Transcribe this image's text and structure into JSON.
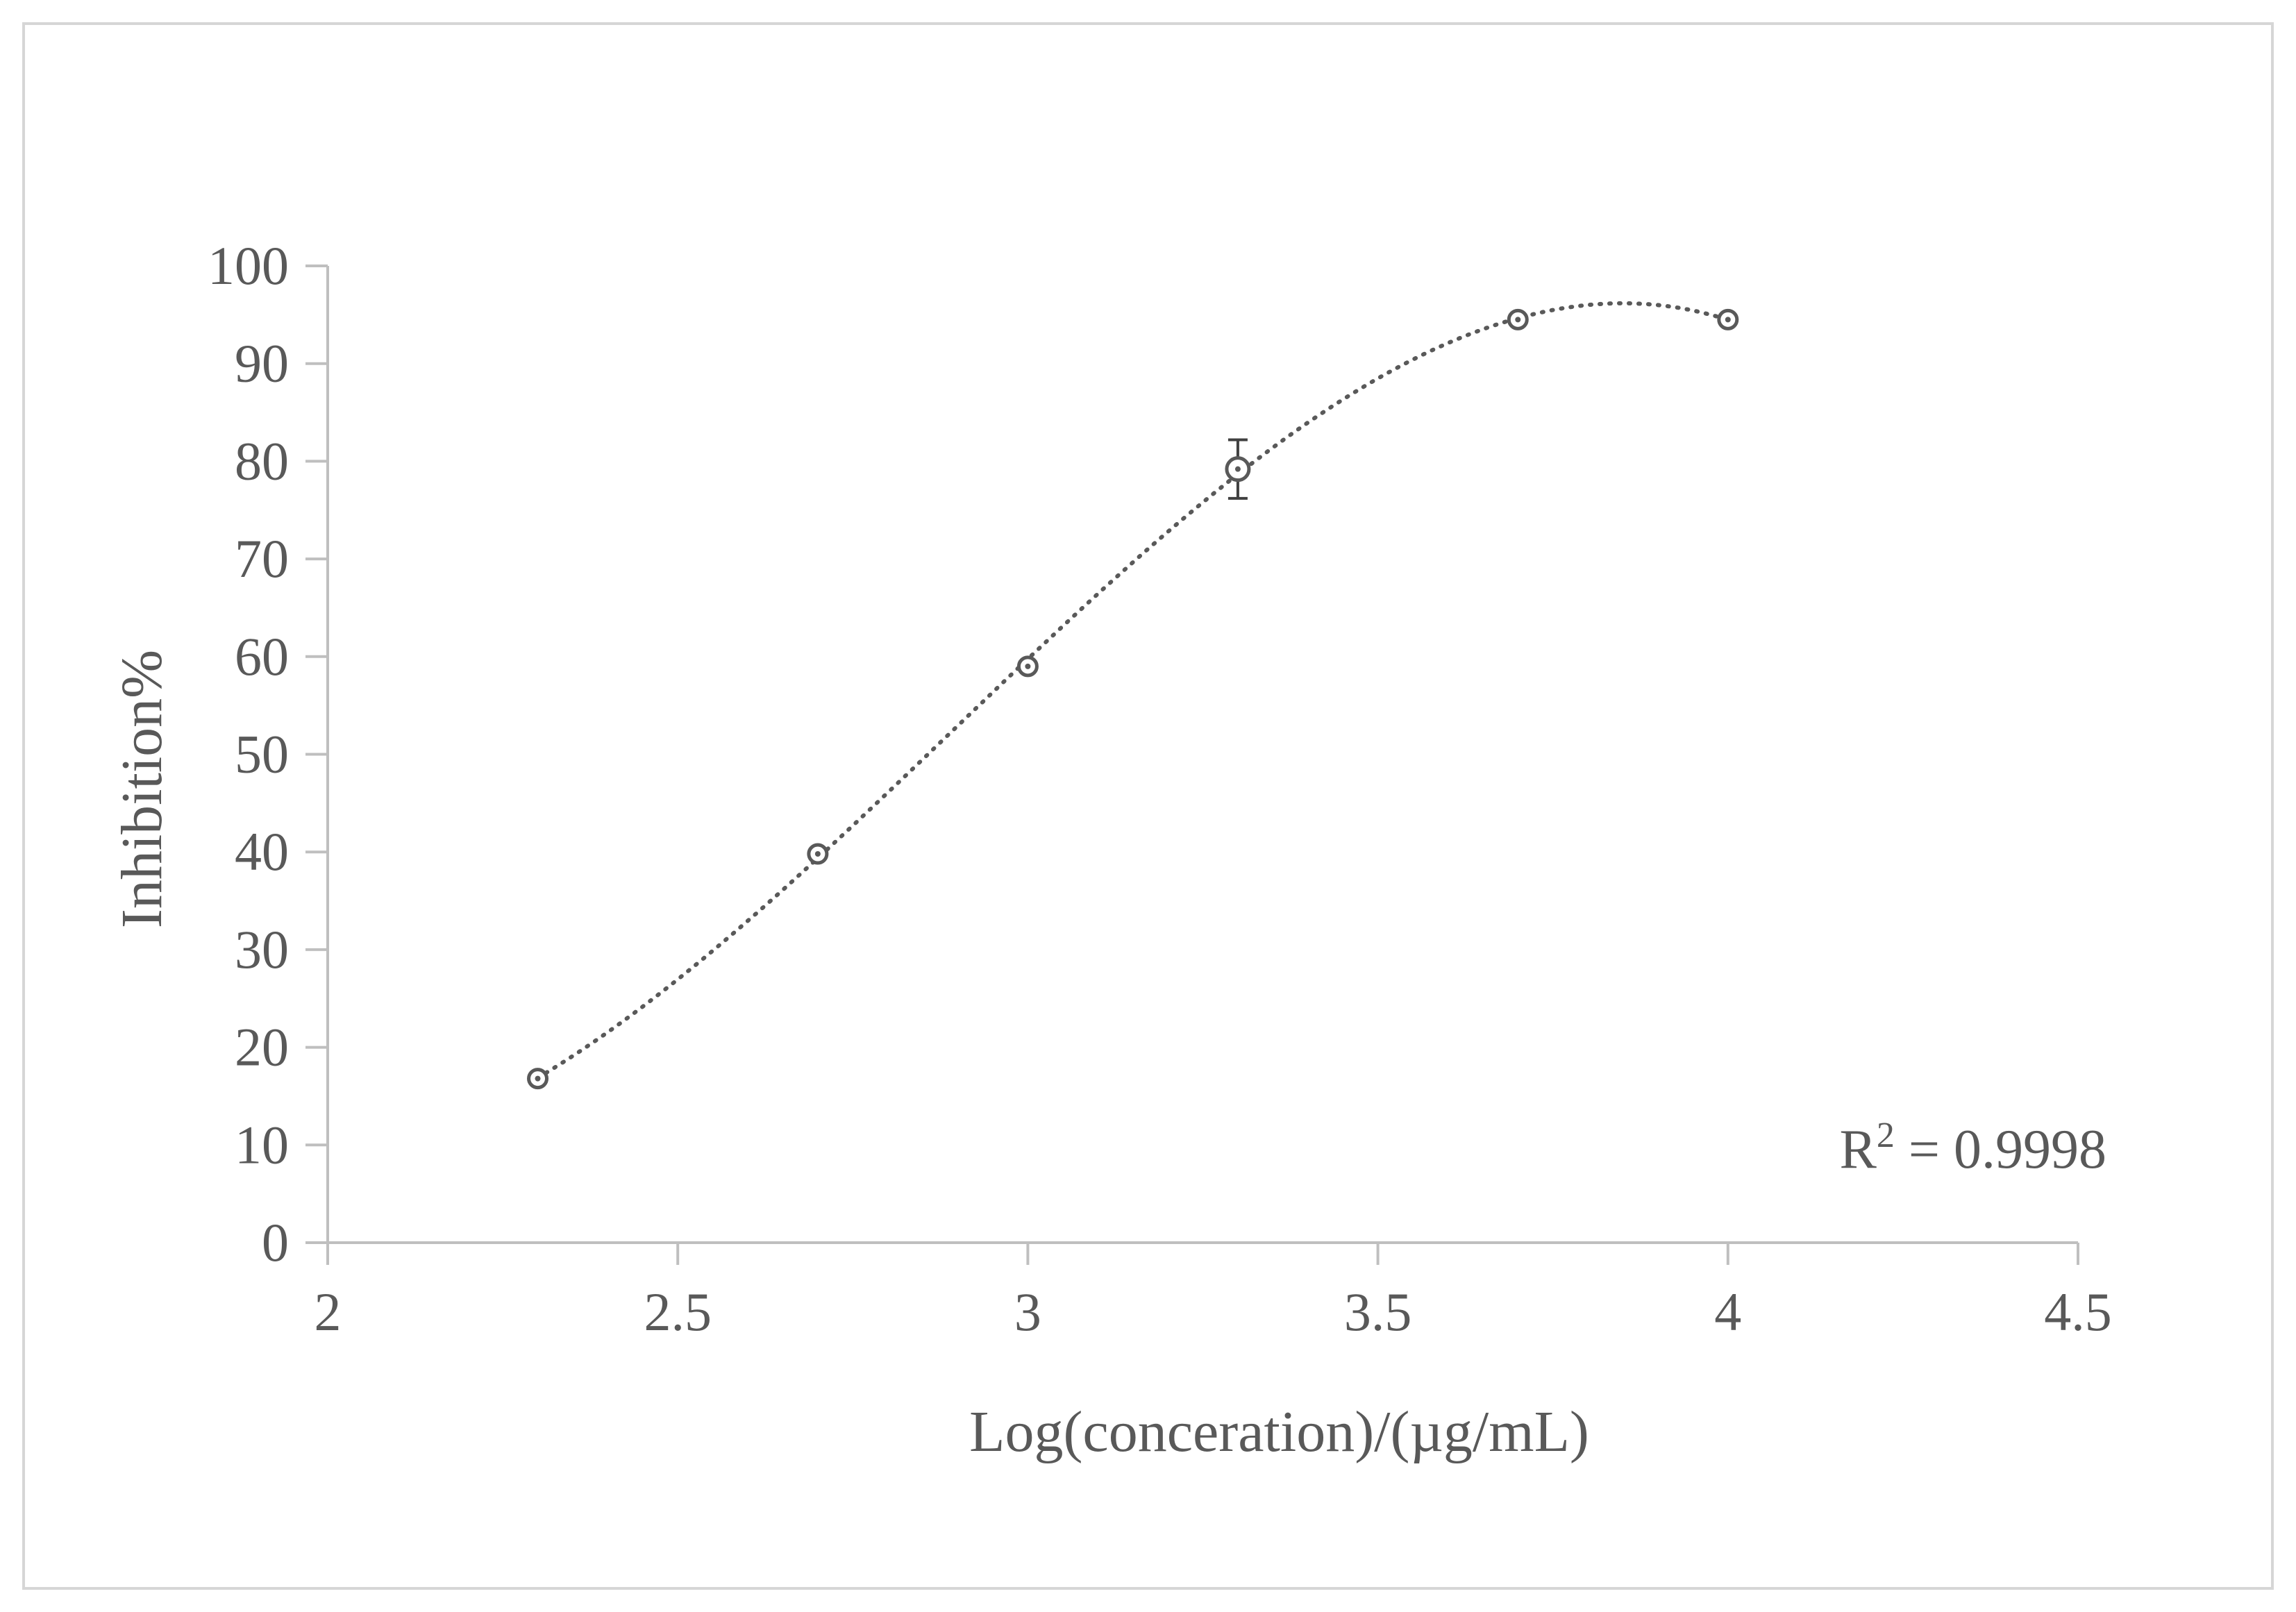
{
  "chart_data": {
    "type": "scatter",
    "title": "",
    "xlabel": "Log(conceration)/(µg/mL)",
    "ylabel": "Inhibition%",
    "xlim": [
      2,
      4.5
    ],
    "ylim": [
      0,
      100
    ],
    "x_ticks": [
      2,
      2.5,
      3,
      3.5,
      4,
      4.5
    ],
    "x_tick_labels": [
      "2",
      "2.5",
      "3",
      "3.5",
      "4",
      "4.5"
    ],
    "y_ticks": [
      0,
      10,
      20,
      30,
      40,
      50,
      60,
      70,
      80,
      90,
      100
    ],
    "y_tick_labels": [
      "0",
      "10",
      "20",
      "30",
      "40",
      "50",
      "60",
      "70",
      "80",
      "90",
      "100"
    ],
    "grid": false,
    "series": [
      {
        "name": "Inhibition",
        "x": [
          2.3,
          2.7,
          3.0,
          3.3,
          3.7,
          4.0
        ],
        "y": [
          16.8,
          39.8,
          59.0,
          79.2,
          94.5,
          94.5
        ],
        "error": [
          0,
          0,
          0,
          3.0,
          0,
          0
        ]
      }
    ],
    "trendline": {
      "type": "polynomial",
      "style": "dotted",
      "x_range": [
        2.3,
        4.0
      ]
    },
    "annotation": {
      "r2_prefix": "R",
      "r2_sup": "2",
      "r2_text": " = 0.9998"
    }
  }
}
